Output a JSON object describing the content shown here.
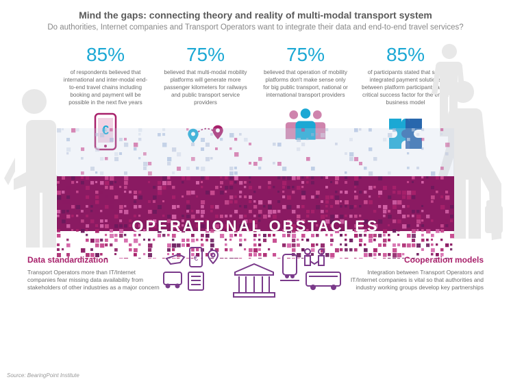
{
  "title": "Mind the gaps: connecting theory and reality of multi-modal transport system",
  "subtitle": "Do authorities, Internet companies and Transport Operators want to integrate their data and end-to-end travel services?",
  "stats": [
    {
      "pct": "85%",
      "text": "of respondents believed that international and inter-modal end-to-end travel chains including booking and payment will be possible in the next five years"
    },
    {
      "pct": "75%",
      "text": "believed that multi-modal mobility platforms will generate more passenger kilometers for railways and public transport service providers"
    },
    {
      "pct": "75%",
      "text": "believed that operation of mobility platforms don't make sense only for big public transport, national or international transport providers"
    },
    {
      "pct": "85%",
      "text": "of participants stated that solid integrated payment solutions between platform participants are a critical success factor for the entire business model"
    }
  ],
  "band_label": "OPERATIONAL OBSTACLES",
  "bottom_left": {
    "title": "Data standardization",
    "text": "Transport Operators more than IT/Internet companies fear missing data availability from stakeholders of other industries as a major concern"
  },
  "bottom_right": {
    "title": "Cooperation models",
    "text": "Integration between Transport Operators and IT/Internet companies is vital so that authorities and industry working groups develop key partnerships"
  },
  "source": "Source: BearingPoint Institute",
  "colors": {
    "accent_cyan": "#1ba8d4",
    "accent_magenta": "#a8216b",
    "magenta_light": "#c74a8f",
    "purple_dark": "#6b1a5c",
    "silhouette": "#e8e8e8",
    "icon_secondary": "#7a3a8a"
  }
}
